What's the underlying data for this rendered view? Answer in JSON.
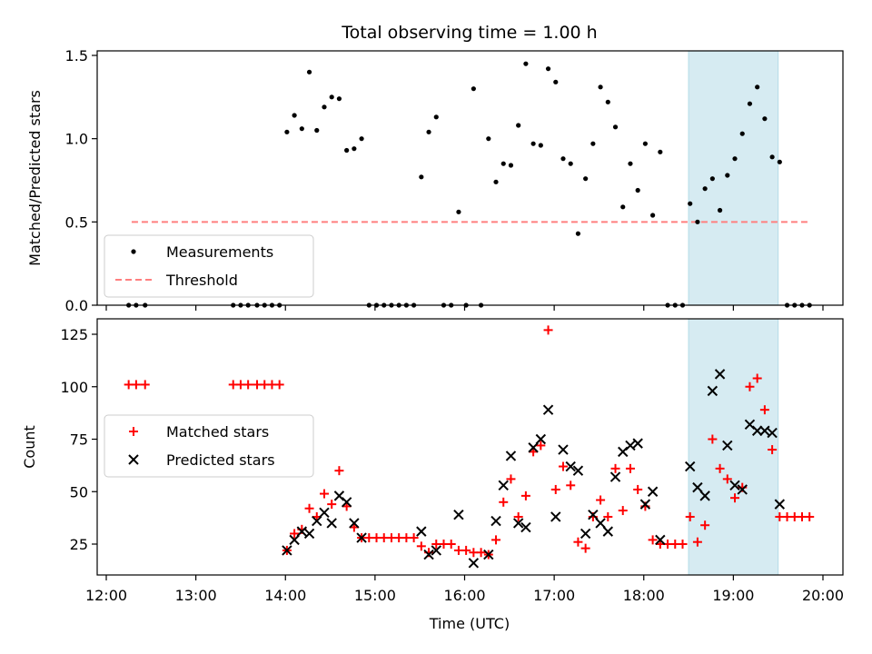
{
  "chart_data": [
    {
      "type": "scatter",
      "title": "Total observing time = 1.00 h",
      "ylabel": "Matched/Predicted stars",
      "xlabel": "",
      "xlim": [
        "12:00",
        "20:00"
      ],
      "ylim": [
        0,
        1.5
      ],
      "yticks": [
        0.0,
        0.5,
        1.0,
        1.5
      ],
      "ytick_labels": [
        "0.0",
        "0.5",
        "1.0",
        "1.5"
      ],
      "highlight_span": [
        "18:30",
        "19:30"
      ],
      "legend": {
        "placement": "lower-left",
        "entries": [
          "Measurements",
          "Threshold"
        ]
      },
      "threshold": {
        "name": "Threshold",
        "y": 0.5,
        "x_start": "12:17",
        "x_end": "19:52"
      },
      "series": [
        {
          "name": "Measurements",
          "points": [
            [
              "12:15",
              0
            ],
            [
              "12:20",
              0
            ],
            [
              "12:26",
              0
            ],
            [
              "13:25",
              0
            ],
            [
              "13:30",
              0
            ],
            [
              "13:35",
              0
            ],
            [
              "13:41",
              0
            ],
            [
              "13:46",
              0
            ],
            [
              "13:51",
              0
            ],
            [
              "13:56",
              0
            ],
            [
              "14:01",
              1.04
            ],
            [
              "14:06",
              1.14
            ],
            [
              "14:11",
              1.06
            ],
            [
              "14:16",
              1.4
            ],
            [
              "14:21",
              1.05
            ],
            [
              "14:26",
              1.19
            ],
            [
              "14:31",
              1.25
            ],
            [
              "14:36",
              1.24
            ],
            [
              "14:41",
              0.93
            ],
            [
              "14:46",
              0.94
            ],
            [
              "14:51",
              1.0
            ],
            [
              "14:56",
              0
            ],
            [
              "15:01",
              0
            ],
            [
              "15:06",
              0
            ],
            [
              "15:11",
              0
            ],
            [
              "15:16",
              0
            ],
            [
              "15:21",
              0
            ],
            [
              "15:26",
              0
            ],
            [
              "15:31",
              0.77
            ],
            [
              "15:36",
              1.04
            ],
            [
              "15:41",
              1.13
            ],
            [
              "15:46",
              0
            ],
            [
              "15:51",
              0
            ],
            [
              "15:56",
              0.56
            ],
            [
              "16:01",
              0
            ],
            [
              "16:06",
              1.3
            ],
            [
              "16:11",
              0
            ],
            [
              "16:16",
              1.0
            ],
            [
              "16:21",
              0.74
            ],
            [
              "16:26",
              0.85
            ],
            [
              "16:31",
              0.84
            ],
            [
              "16:36",
              1.08
            ],
            [
              "16:41",
              1.45
            ],
            [
              "16:46",
              0.97
            ],
            [
              "16:51",
              0.96
            ],
            [
              "16:56",
              1.42
            ],
            [
              "17:01",
              1.34
            ],
            [
              "17:06",
              0.88
            ],
            [
              "17:11",
              0.85
            ],
            [
              "17:16",
              0.43
            ],
            [
              "17:21",
              0.76
            ],
            [
              "17:26",
              0.97
            ],
            [
              "17:31",
              1.31
            ],
            [
              "17:36",
              1.22
            ],
            [
              "17:41",
              1.07
            ],
            [
              "17:46",
              0.59
            ],
            [
              "17:51",
              0.85
            ],
            [
              "17:56",
              0.69
            ],
            [
              "18:01",
              0.97
            ],
            [
              "18:06",
              0.54
            ],
            [
              "18:11",
              0.92
            ],
            [
              "18:16",
              0
            ],
            [
              "18:21",
              0
            ],
            [
              "18:26",
              0
            ],
            [
              "18:31",
              0.61
            ],
            [
              "18:36",
              0.5
            ],
            [
              "18:41",
              0.7
            ],
            [
              "18:46",
              0.76
            ],
            [
              "18:51",
              0.57
            ],
            [
              "18:56",
              0.78
            ],
            [
              "19:01",
              0.88
            ],
            [
              "19:06",
              1.03
            ],
            [
              "19:11",
              1.21
            ],
            [
              "19:16",
              1.31
            ],
            [
              "19:21",
              1.12
            ],
            [
              "19:26",
              0.89
            ],
            [
              "19:31",
              0.86
            ],
            [
              "19:36",
              0
            ],
            [
              "19:41",
              0
            ],
            [
              "19:46",
              0
            ],
            [
              "19:51",
              0
            ]
          ]
        }
      ]
    },
    {
      "type": "scatter",
      "title": "",
      "ylabel": "Count",
      "xlabel": "Time (UTC)",
      "xlim": [
        "12:00",
        "20:00"
      ],
      "xticks": [
        "12:00",
        "13:00",
        "14:00",
        "15:00",
        "16:00",
        "17:00",
        "18:00",
        "19:00",
        "20:00"
      ],
      "ylim": [
        10,
        132
      ],
      "yticks": [
        25,
        50,
        75,
        100,
        125
      ],
      "ytick_labels": [
        "25",
        "50",
        "75",
        "100",
        "125"
      ],
      "highlight_span": [
        "18:30",
        "19:30"
      ],
      "legend": {
        "placement": "center-left",
        "entries": [
          "Matched stars",
          "Predicted stars"
        ]
      },
      "series": [
        {
          "name": "Matched stars",
          "marker": "plus",
          "color": "#ff0000",
          "points": [
            [
              "12:15",
              101
            ],
            [
              "12:20",
              101
            ],
            [
              "12:26",
              101
            ],
            [
              "13:25",
              101
            ],
            [
              "13:30",
              101
            ],
            [
              "13:35",
              101
            ],
            [
              "13:41",
              101
            ],
            [
              "13:46",
              101
            ],
            [
              "13:51",
              101
            ],
            [
              "13:56",
              101
            ],
            [
              "14:01",
              22
            ],
            [
              "14:06",
              30
            ],
            [
              "14:11",
              32
            ],
            [
              "14:16",
              42
            ],
            [
              "14:21",
              38
            ],
            [
              "14:26",
              49
            ],
            [
              "14:31",
              44
            ],
            [
              "14:36",
              60
            ],
            [
              "14:41",
              43
            ],
            [
              "14:46",
              33
            ],
            [
              "14:51",
              28
            ],
            [
              "14:56",
              28
            ],
            [
              "15:01",
              28
            ],
            [
              "15:06",
              28
            ],
            [
              "15:11",
              28
            ],
            [
              "15:16",
              28
            ],
            [
              "15:21",
              28
            ],
            [
              "15:26",
              28
            ],
            [
              "15:31",
              24
            ],
            [
              "15:36",
              21
            ],
            [
              "15:41",
              25
            ],
            [
              "15:46",
              25
            ],
            [
              "15:51",
              25
            ],
            [
              "15:56",
              22
            ],
            [
              "16:01",
              22
            ],
            [
              "16:06",
              21
            ],
            [
              "16:11",
              21
            ],
            [
              "16:16",
              20
            ],
            [
              "16:21",
              27
            ],
            [
              "16:26",
              45
            ],
            [
              "16:31",
              56
            ],
            [
              "16:36",
              38
            ],
            [
              "16:41",
              48
            ],
            [
              "16:46",
              69
            ],
            [
              "16:51",
              72
            ],
            [
              "16:56",
              127
            ],
            [
              "17:01",
              51
            ],
            [
              "17:06",
              62
            ],
            [
              "17:11",
              53
            ],
            [
              "17:16",
              26
            ],
            [
              "17:21",
              23
            ],
            [
              "17:26",
              38
            ],
            [
              "17:31",
              46
            ],
            [
              "17:36",
              38
            ],
            [
              "17:41",
              61
            ],
            [
              "17:46",
              41
            ],
            [
              "17:51",
              61
            ],
            [
              "17:56",
              51
            ],
            [
              "18:01",
              43
            ],
            [
              "18:06",
              27
            ],
            [
              "18:11",
              25
            ],
            [
              "18:16",
              25
            ],
            [
              "18:21",
              25
            ],
            [
              "18:26",
              25
            ],
            [
              "18:31",
              38
            ],
            [
              "18:36",
              26
            ],
            [
              "18:41",
              34
            ],
            [
              "18:46",
              75
            ],
            [
              "18:51",
              61
            ],
            [
              "18:56",
              56
            ],
            [
              "19:01",
              47
            ],
            [
              "19:06",
              52
            ],
            [
              "19:11",
              100
            ],
            [
              "19:16",
              104
            ],
            [
              "19:21",
              89
            ],
            [
              "19:26",
              70
            ],
            [
              "19:31",
              38
            ],
            [
              "19:36",
              38
            ],
            [
              "19:41",
              38
            ],
            [
              "19:46",
              38
            ],
            [
              "19:51",
              38
            ]
          ]
        },
        {
          "name": "Predicted stars",
          "marker": "x",
          "color": "#000000",
          "points": [
            [
              "14:01",
              22
            ],
            [
              "14:06",
              27
            ],
            [
              "14:11",
              31
            ],
            [
              "14:16",
              30
            ],
            [
              "14:21",
              36
            ],
            [
              "14:26",
              40
            ],
            [
              "14:31",
              35
            ],
            [
              "14:36",
              48
            ],
            [
              "14:41",
              45
            ],
            [
              "14:46",
              35
            ],
            [
              "14:51",
              28
            ],
            [
              "15:31",
              31
            ],
            [
              "15:36",
              20
            ],
            [
              "15:41",
              22
            ],
            [
              "15:56",
              39
            ],
            [
              "16:06",
              16
            ],
            [
              "16:16",
              20
            ],
            [
              "16:21",
              36
            ],
            [
              "16:26",
              53
            ],
            [
              "16:31",
              67
            ],
            [
              "16:36",
              35
            ],
            [
              "16:41",
              33
            ],
            [
              "16:46",
              71
            ],
            [
              "16:51",
              75
            ],
            [
              "16:56",
              89
            ],
            [
              "17:01",
              38
            ],
            [
              "17:06",
              70
            ],
            [
              "17:11",
              62
            ],
            [
              "17:16",
              60
            ],
            [
              "17:21",
              30
            ],
            [
              "17:26",
              39
            ],
            [
              "17:31",
              35
            ],
            [
              "17:36",
              31
            ],
            [
              "17:41",
              57
            ],
            [
              "17:46",
              69
            ],
            [
              "17:51",
              72
            ],
            [
              "17:56",
              73
            ],
            [
              "18:01",
              44
            ],
            [
              "18:06",
              50
            ],
            [
              "18:11",
              27
            ],
            [
              "18:31",
              62
            ],
            [
              "18:36",
              52
            ],
            [
              "18:41",
              48
            ],
            [
              "18:46",
              98
            ],
            [
              "18:51",
              106
            ],
            [
              "18:56",
              72
            ],
            [
              "19:01",
              53
            ],
            [
              "19:06",
              51
            ],
            [
              "19:11",
              82
            ],
            [
              "19:16",
              79
            ],
            [
              "19:21",
              79
            ],
            [
              "19:26",
              78
            ],
            [
              "19:31",
              44
            ]
          ]
        }
      ]
    }
  ]
}
